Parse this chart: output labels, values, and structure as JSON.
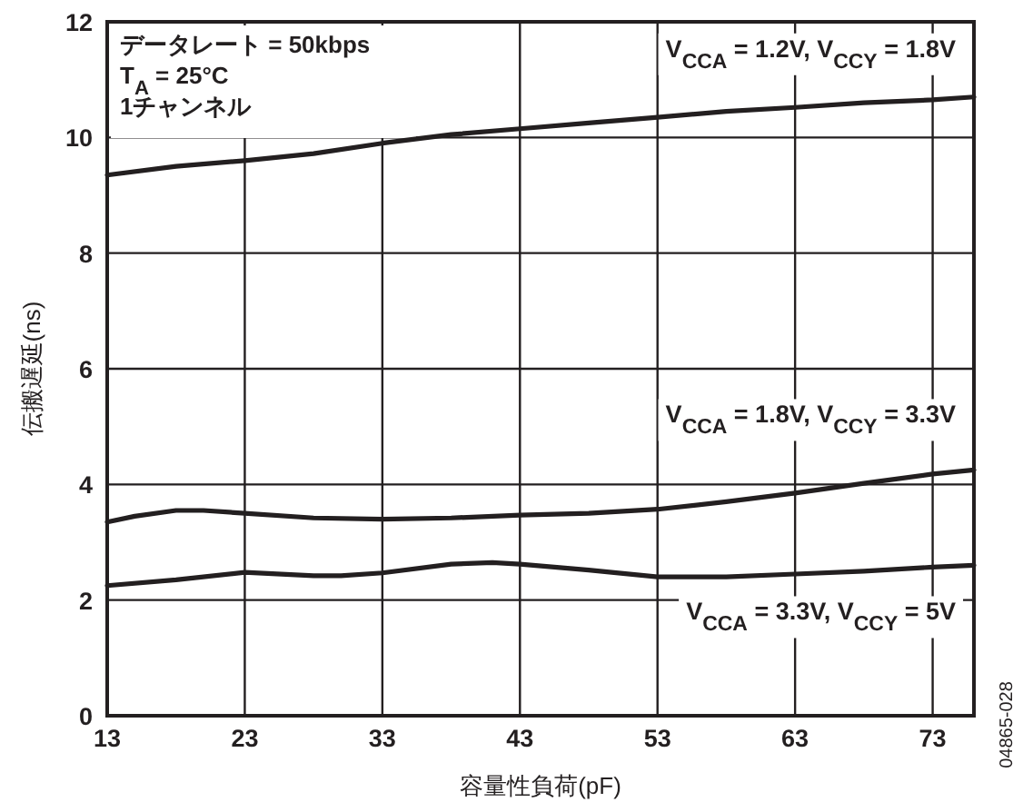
{
  "chart_data": {
    "type": "line",
    "xlabel": "容量性負荷(pF)",
    "ylabel": "伝搬遅延(ns)",
    "series": [
      {
        "name": "V$_{CCA}$ = 1.2V, V$_{CCY}$ = 1.8V",
        "color": "#231f20",
        "x": [
          13,
          18,
          23,
          28,
          33,
          38,
          43,
          48,
          53,
          58,
          63,
          68,
          73,
          76
        ],
        "values": [
          9.35,
          9.5,
          9.6,
          9.72,
          9.9,
          10.05,
          10.15,
          10.25,
          10.35,
          10.45,
          10.52,
          10.6,
          10.65,
          10.7
        ]
      },
      {
        "name": "V$_{CCA}$ = 1.8V, V$_{CCY}$ = 3.3V",
        "color": "#231f20",
        "x": [
          13,
          15,
          18,
          20,
          23,
          28,
          33,
          38,
          43,
          48,
          53,
          58,
          63,
          68,
          73,
          76
        ],
        "values": [
          3.35,
          3.45,
          3.55,
          3.55,
          3.5,
          3.42,
          3.4,
          3.42,
          3.47,
          3.5,
          3.57,
          3.7,
          3.85,
          4.02,
          4.18,
          4.25
        ]
      },
      {
        "name": "V$_{CCA}$ = 3.3V, V$_{CCY}$ = 5V",
        "color": "#231f20",
        "x": [
          13,
          18,
          23,
          28,
          30,
          33,
          38,
          41,
          43,
          48,
          53,
          58,
          63,
          68,
          73,
          76
        ],
        "values": [
          2.25,
          2.35,
          2.48,
          2.42,
          2.42,
          2.47,
          2.62,
          2.65,
          2.62,
          2.52,
          2.4,
          2.4,
          2.45,
          2.5,
          2.57,
          2.6
        ]
      }
    ],
    "xlim": [
      13,
      76
    ],
    "xticks": [
      13,
      23,
      33,
      43,
      53,
      63,
      73
    ],
    "ylim": [
      0,
      12
    ],
    "yticks": [
      0,
      2,
      4,
      6,
      8,
      10,
      12
    ],
    "grid": true,
    "line_style": "solid",
    "marker": "none",
    "annotations": [
      "データレート = 50kbps",
      "T$_{A}$ = 25°C",
      "1チャンネル",
      "04865-028"
    ]
  }
}
